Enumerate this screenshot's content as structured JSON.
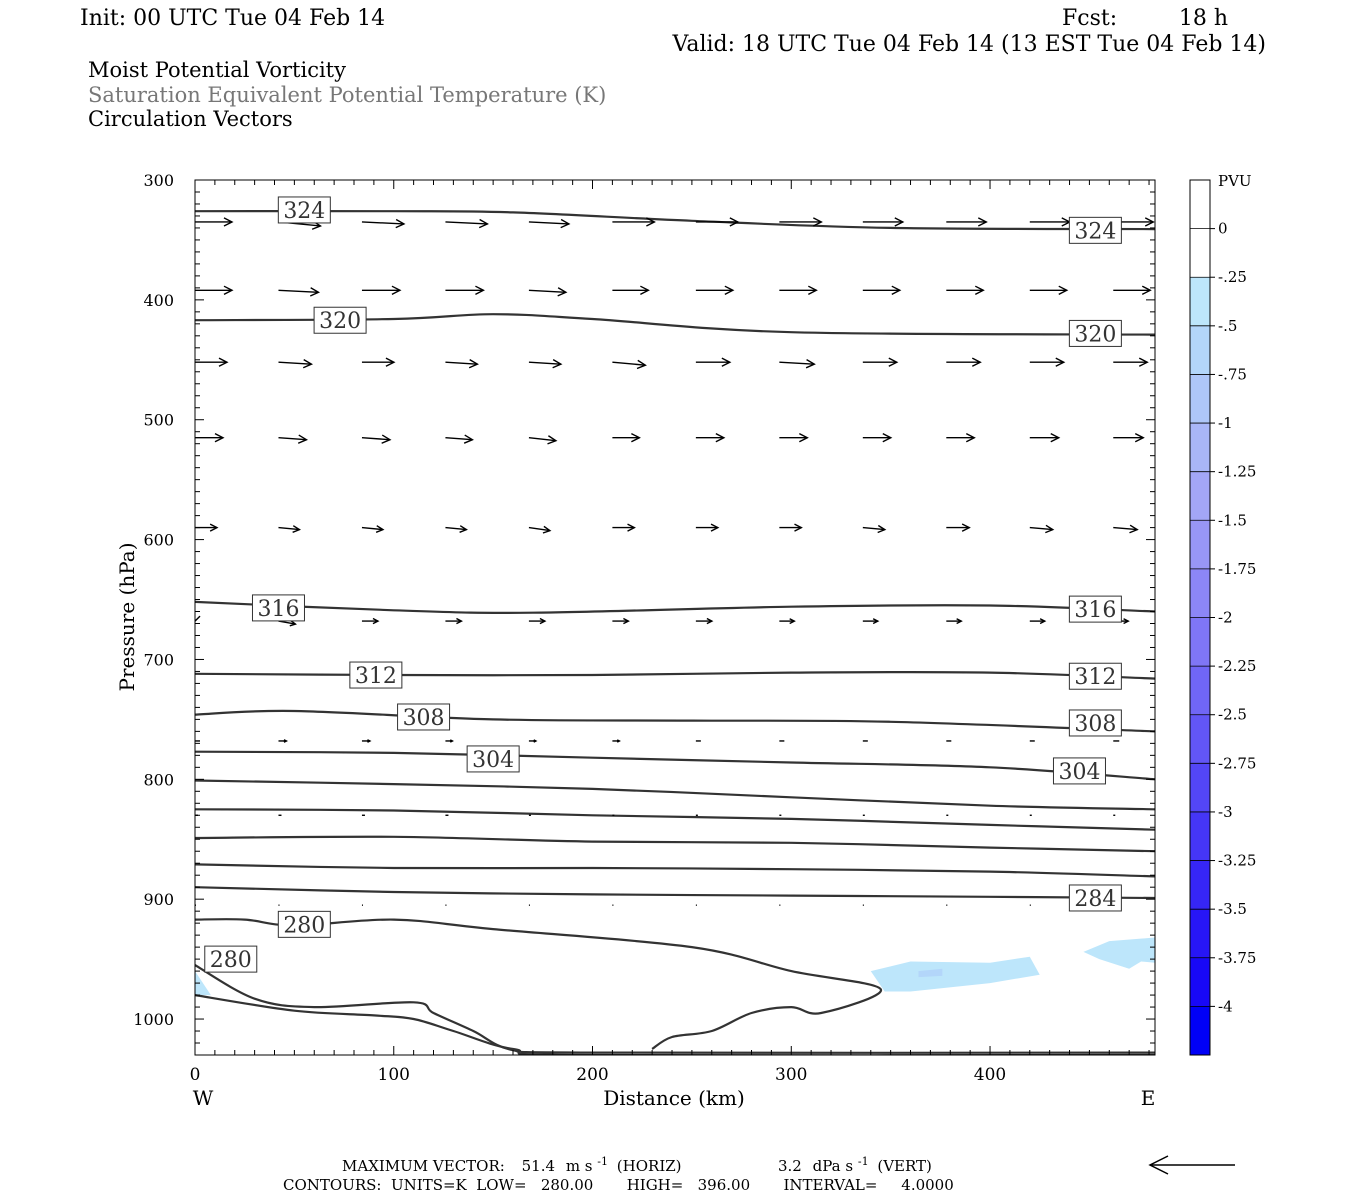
{
  "header": {
    "init": "Init: 00 UTC Tue 04 Feb 14",
    "fcst_label": "Fcst:",
    "fcst_value": "18 h",
    "valid": "Valid: 18 UTC Tue 04 Feb 14 (13 EST Tue 04 Feb 14)"
  },
  "fields": [
    {
      "text": "Moist Potential Vorticity",
      "color": "#000000"
    },
    {
      "text": "Saturation Equivalent Potential Temperature (K)",
      "color": "#777777"
    },
    {
      "text": "Circulation Vectors",
      "color": "#000000"
    }
  ],
  "footer": {
    "max_vector_label": "MAXIMUM VECTOR:",
    "horiz_value": "51.4",
    "horiz_unit_pre": "m s",
    "horiz_exp": "-1",
    "horiz_tag": "(HORIZ)",
    "vert_value": "3.2",
    "vert_unit_pre": "dPa s",
    "vert_exp": "-1",
    "vert_tag": "(VERT)",
    "contours": "CONTOURS:  UNITS=K  LOW=   280.00       HIGH=   396.00       INTERVAL=     4.0000"
  },
  "chart_data": {
    "type": "contour",
    "xlabel": "Distance (km)",
    "ylabel": "Pressure (hPa)",
    "x_ticks": [
      0,
      100,
      200,
      300,
      400
    ],
    "y_ticks": [
      300,
      400,
      500,
      600,
      700,
      800,
      900,
      1000
    ],
    "xlim": [
      0,
      483
    ],
    "ylim": [
      1030,
      300
    ],
    "west_label": "W",
    "east_label": "E",
    "colorbar": {
      "title": "PVU",
      "tick_labels": [
        "0",
        "-.25",
        "-.5",
        "-.75",
        "-1",
        "-1.25",
        "-1.5",
        "-1.75",
        "-2",
        "-2.25",
        "-2.5",
        "-2.75",
        "-3",
        "-3.25",
        "-3.5",
        "-3.75",
        "-4"
      ],
      "colors": [
        "#ffffff",
        "#ffffff",
        "#bde6fb",
        "#b3d6fa",
        "#aec6f8",
        "#a9b6f7",
        "#a3a6f6",
        "#9896f6",
        "#8c86f6",
        "#7f76f6",
        "#7066f6",
        "#6256f6",
        "#5346f6",
        "#4536f6",
        "#3626f6",
        "#2716f6",
        "#1808f6",
        "#0000f6"
      ]
    },
    "theta_es_contours": [
      {
        "label": "324",
        "label_at": [
          [
            55,
            325
          ],
          [
            453,
            342
          ]
        ],
        "points": [
          [
            0,
            326
          ],
          [
            100,
            326
          ],
          [
            160,
            327
          ],
          [
            250,
            334
          ],
          [
            350,
            340
          ],
          [
            483,
            341
          ]
        ]
      },
      {
        "label": "320",
        "label_at": [
          [
            73,
            417
          ],
          [
            453,
            428
          ]
        ],
        "points": [
          [
            0,
            417
          ],
          [
            100,
            416
          ],
          [
            150,
            412
          ],
          [
            200,
            416
          ],
          [
            300,
            427
          ],
          [
            483,
            429
          ]
        ]
      },
      {
        "label": "316",
        "label_at": [
          [
            42,
            657
          ],
          [
            453,
            658
          ]
        ],
        "points": [
          [
            0,
            652
          ],
          [
            100,
            659
          ],
          [
            170,
            661
          ],
          [
            300,
            656
          ],
          [
            400,
            655
          ],
          [
            483,
            660
          ]
        ]
      },
      {
        "label": "312",
        "label_at": [
          [
            91,
            713
          ],
          [
            453,
            714
          ]
        ],
        "points": [
          [
            0,
            712
          ],
          [
            100,
            713
          ],
          [
            200,
            713
          ],
          [
            300,
            711
          ],
          [
            400,
            711
          ],
          [
            483,
            716
          ]
        ]
      },
      {
        "label": "308",
        "label_at": [
          [
            115,
            748
          ],
          [
            453,
            753
          ]
        ],
        "points": [
          [
            0,
            746
          ],
          [
            50,
            743
          ],
          [
            150,
            750
          ],
          [
            250,
            751
          ],
          [
            350,
            752
          ],
          [
            483,
            760
          ]
        ]
      },
      {
        "label": "304",
        "label_at": [
          [
            150,
            783
          ],
          [
            445,
            793
          ]
        ],
        "points": [
          [
            0,
            777
          ],
          [
            100,
            778
          ],
          [
            200,
            782
          ],
          [
            300,
            786
          ],
          [
            400,
            790
          ],
          [
            483,
            800
          ]
        ]
      },
      {
        "label": "",
        "label_at": [],
        "points": [
          [
            0,
            801
          ],
          [
            100,
            804
          ],
          [
            200,
            808
          ],
          [
            300,
            815
          ],
          [
            400,
            822
          ],
          [
            483,
            825
          ]
        ]
      },
      {
        "label": "",
        "label_at": [],
        "points": [
          [
            0,
            825
          ],
          [
            100,
            826
          ],
          [
            200,
            830
          ],
          [
            300,
            833
          ],
          [
            400,
            838
          ],
          [
            483,
            842
          ]
        ]
      },
      {
        "label": "",
        "label_at": [],
        "points": [
          [
            0,
            849
          ],
          [
            100,
            848
          ],
          [
            200,
            852
          ],
          [
            300,
            853
          ],
          [
            400,
            857
          ],
          [
            483,
            860
          ]
        ]
      },
      {
        "label": "",
        "label_at": [],
        "points": [
          [
            0,
            871
          ],
          [
            100,
            874
          ],
          [
            200,
            874
          ],
          [
            300,
            875
          ],
          [
            400,
            877
          ],
          [
            483,
            881
          ]
        ]
      },
      {
        "label": "284",
        "label_at": [
          [
            453,
            899
          ]
        ],
        "points": [
          [
            0,
            890
          ],
          [
            100,
            894
          ],
          [
            200,
            896
          ],
          [
            300,
            897
          ],
          [
            400,
            898
          ],
          [
            483,
            899
          ]
        ]
      },
      {
        "label": "280",
        "label_at": [
          [
            55,
            921
          ],
          [
            18,
            950
          ]
        ],
        "points": [
          [
            0,
            917
          ],
          [
            25,
            917
          ],
          [
            50,
            922
          ],
          [
            100,
            917
          ],
          [
            150,
            925
          ],
          [
            250,
            940
          ],
          [
            300,
            960
          ],
          [
            345,
            975
          ],
          [
            315,
            995
          ],
          [
            300,
            990
          ],
          [
            280,
            995
          ],
          [
            260,
            1010
          ],
          [
            240,
            1015
          ],
          [
            230,
            1025
          ]
        ]
      },
      {
        "label": "",
        "label_at": [],
        "points": [
          [
            0,
            955
          ],
          [
            30,
            983
          ],
          [
            60,
            990
          ],
          [
            110,
            986
          ],
          [
            120,
            995
          ],
          [
            140,
            1010
          ],
          [
            160,
            1026
          ],
          [
            200,
            1030
          ],
          [
            483,
            1030
          ]
        ]
      },
      {
        "label": "",
        "label_at": [],
        "points": [
          [
            0,
            980
          ],
          [
            50,
            993
          ],
          [
            90,
            997
          ],
          [
            110,
            1000
          ],
          [
            130,
            1010
          ],
          [
            160,
            1025
          ],
          [
            200,
            1028
          ],
          [
            483,
            1028
          ]
        ]
      }
    ],
    "pv_negative_regions": [
      {
        "level": "-.25",
        "points": [
          [
            340,
            960
          ],
          [
            360,
            952
          ],
          [
            400,
            953
          ],
          [
            420,
            948
          ],
          [
            425,
            963
          ],
          [
            400,
            970
          ],
          [
            360,
            977
          ],
          [
            347,
            977
          ]
        ]
      },
      {
        "level": "-.5",
        "points": [
          [
            364,
            960
          ],
          [
            376,
            958
          ],
          [
            376,
            964
          ],
          [
            364,
            965
          ]
        ]
      },
      {
        "level": "-.25",
        "points": [
          [
            447,
            944
          ],
          [
            460,
            935
          ],
          [
            483,
            932
          ],
          [
            483,
            953
          ],
          [
            476,
            952
          ],
          [
            470,
            958
          ],
          [
            455,
            950
          ]
        ]
      },
      {
        "level": "-.25",
        "points": [
          [
            0,
            960
          ],
          [
            8,
            980
          ],
          [
            0,
            980
          ]
        ]
      }
    ],
    "vector_rows": [
      {
        "p": 335,
        "dx": [
          37,
          42,
          42,
          42,
          40,
          42,
          42,
          42,
          40,
          40,
          40,
          40,
          40
        ],
        "dp": [
          0,
          4,
          2,
          2,
          2,
          0,
          0,
          0,
          0,
          0,
          0,
          0,
          0
        ]
      },
      {
        "p": 392,
        "dx": [
          37,
          40,
          38,
          38,
          37,
          36,
          37,
          37,
          37,
          37,
          37,
          37,
          37
        ],
        "dp": [
          0,
          2,
          0,
          0,
          2,
          0,
          0,
          0,
          0,
          0,
          0,
          0,
          0
        ]
      },
      {
        "p": 452,
        "dx": [
          32,
          33,
          32,
          32,
          32,
          33,
          34,
          35,
          34,
          34,
          34,
          34,
          34
        ],
        "dp": [
          0,
          2,
          0,
          2,
          2,
          3,
          0,
          2,
          0,
          0,
          0,
          0,
          0
        ]
      },
      {
        "p": 515,
        "dx": [
          28,
          28,
          28,
          27,
          27,
          27,
          28,
          28,
          28,
          28,
          29,
          30,
          30
        ],
        "dp": [
          0,
          2,
          2,
          2,
          3,
          0,
          0,
          0,
          0,
          0,
          0,
          0,
          0
        ]
      },
      {
        "p": 590,
        "dx": [
          22,
          21,
          21,
          21,
          21,
          22,
          22,
          22,
          22,
          23,
          23,
          24,
          24
        ],
        "dp": [
          0,
          2,
          2,
          2,
          3,
          0,
          0,
          0,
          2,
          0,
          2,
          2,
          0
        ]
      },
      {
        "p": 668,
        "dx": [
          5,
          17,
          16,
          16,
          16,
          16,
          16,
          15,
          15,
          15,
          15,
          15,
          15
        ],
        "dp": [
          -5,
          3,
          0,
          0,
          0,
          0,
          0,
          0,
          0,
          0,
          0,
          0,
          0
        ]
      },
      {
        "p": 768,
        "dx": [
          5,
          8,
          8,
          7,
          7,
          7,
          5,
          5,
          5,
          5,
          5,
          6,
          6
        ],
        "dp": [
          0,
          0,
          0,
          0,
          0,
          0,
          0,
          0,
          0,
          0,
          0,
          0,
          0
        ]
      },
      {
        "p": 830,
        "dx": [
          3,
          3,
          3,
          3,
          2,
          2,
          2,
          2,
          2,
          2,
          2,
          2,
          2
        ],
        "dp": [
          0,
          0,
          0,
          0,
          0,
          0,
          0,
          0,
          0,
          0,
          0,
          0,
          0
        ]
      },
      {
        "p": 905,
        "dx": [
          1,
          1,
          1,
          1,
          1,
          1,
          1,
          1,
          1,
          1,
          1,
          1,
          1
        ],
        "dp": [
          0,
          0,
          0,
          0,
          0,
          0,
          0,
          0,
          0,
          0,
          0,
          0,
          0
        ]
      }
    ],
    "reference_vector": "arrow pointing west, 51.4 m s-1 horizontal"
  }
}
